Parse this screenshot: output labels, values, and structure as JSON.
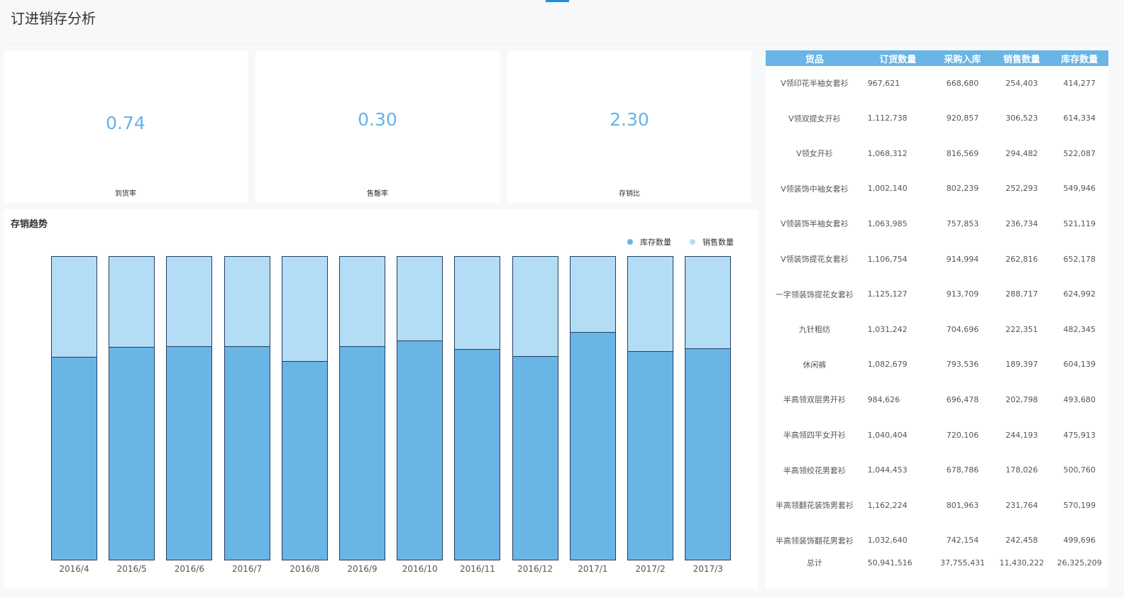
{
  "page_title": "订进销存分析",
  "colors": {
    "stock": "#68b5e6",
    "sales": "#b3dcf5",
    "accent": "#65b3e6"
  },
  "kpis": [
    {
      "value": "0.74",
      "label": "到货率"
    },
    {
      "value": "0.30",
      "label": "售罄率"
    },
    {
      "value": "2.30",
      "label": "存销比"
    }
  ],
  "chart_data": {
    "type": "bar",
    "stacked": true,
    "normalized": true,
    "title": "存销趋势",
    "categories": [
      "2016/4",
      "2016/5",
      "2016/6",
      "2016/7",
      "2016/8",
      "2016/9",
      "2016/10",
      "2016/11",
      "2016/12",
      "2017/1",
      "2017/2",
      "2017/3"
    ],
    "series": [
      {
        "name": "库存数量",
        "values": [
          66.9,
          70.2,
          70.4,
          70.6,
          65.5,
          70.4,
          72.3,
          69.5,
          67.1,
          75.1,
          68.8,
          69.7
        ]
      },
      {
        "name": "销售数量",
        "values": [
          33.1,
          29.8,
          29.6,
          29.4,
          34.5,
          29.6,
          27.7,
          30.5,
          32.9,
          24.9,
          31.2,
          30.3
        ]
      }
    ],
    "ylim": [
      0,
      100
    ],
    "legend": "top-right",
    "grid": false
  },
  "table": {
    "headers": [
      "货品",
      "订货数量",
      "采购入库",
      "销售数量",
      "库存数量"
    ],
    "rows": [
      [
        "V领印花半袖女套衫",
        "967,621",
        "668,680",
        "254,403",
        "414,277"
      ],
      [
        "V领双提女开衫",
        "1,112,738",
        "920,857",
        "306,523",
        "614,334"
      ],
      [
        "V领女开衫",
        "1,068,312",
        "816,569",
        "294,482",
        "522,087"
      ],
      [
        "V领装饰中袖女套衫",
        "1,002,140",
        "802,239",
        "252,293",
        "549,946"
      ],
      [
        "V领装饰半袖女套衫",
        "1,063,985",
        "757,853",
        "236,734",
        "521,119"
      ],
      [
        "V领装饰提花女套衫",
        "1,106,754",
        "914,994",
        "262,816",
        "652,178"
      ],
      [
        "一字领装饰提花女套衫",
        "1,125,127",
        "913,709",
        "288,717",
        "624,992"
      ],
      [
        "九针粗纺",
        "1,031,242",
        "704,696",
        "222,351",
        "482,345"
      ],
      [
        "休闲裤",
        "1,082,679",
        "793,536",
        "189,397",
        "604,139"
      ],
      [
        "半高领双层男开衫",
        "984,626",
        "696,478",
        "202,798",
        "493,680"
      ],
      [
        "半高领四平女开衫",
        "1,040,404",
        "720,106",
        "244,193",
        "475,913"
      ],
      [
        "半高领绞花男套衫",
        "1,044,453",
        "678,786",
        "178,026",
        "500,760"
      ],
      [
        "半高领翻花装饰男套衫",
        "1,162,224",
        "801,963",
        "231,764",
        "570,199"
      ],
      [
        "半高领装饰翻花男套衫",
        "1,032,640",
        "742,154",
        "242,458",
        "499,696"
      ]
    ],
    "total": [
      "总计",
      "50,941,516",
      "37,755,431",
      "11,430,222",
      "26,325,209"
    ]
  }
}
